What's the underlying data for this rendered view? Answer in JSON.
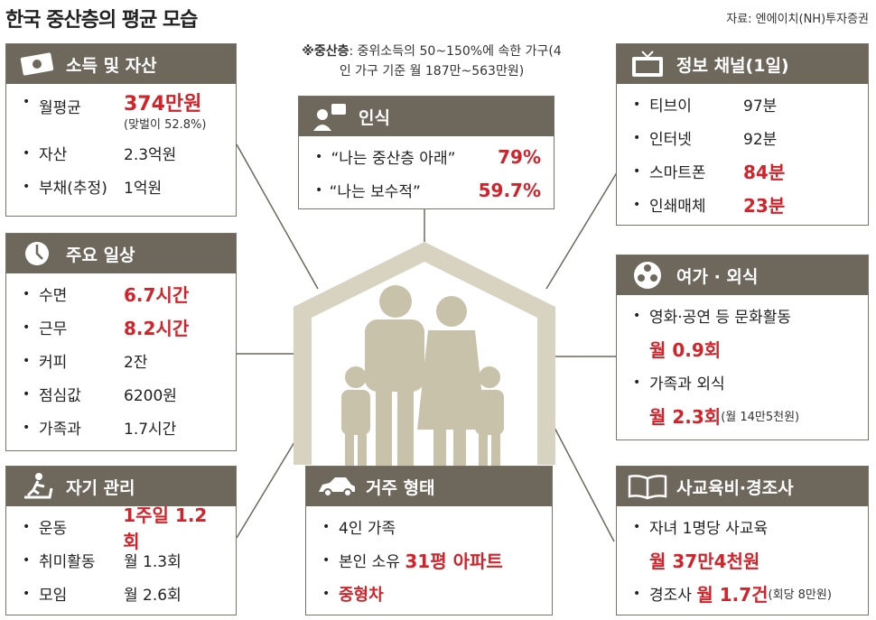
{
  "title": "한국 중산층의 평균 모습",
  "source": "자료: 엔에이치(NH)투자증권",
  "note": {
    "label": "※중산층",
    "text": ": 중위소득의 50~150%에 속한 가구(4인 가구 기준 월 187만~563만원)"
  },
  "income": {
    "header": "소득 및 자산",
    "icon": "money-icon",
    "rows": [
      {
        "k": "월평균",
        "v": "374만원",
        "sub": "(맞벌이 52.8%)"
      },
      {
        "k": "자산",
        "v": "2.3억원"
      },
      {
        "k": "부채(추정)",
        "v": "1억원"
      }
    ]
  },
  "daily": {
    "header": "주요 일상",
    "icon": "clock-icon",
    "rows": [
      {
        "k": "수면",
        "v": "6.7시간"
      },
      {
        "k": "근무",
        "v": "8.2시간"
      },
      {
        "k": "커피",
        "v": "2잔"
      },
      {
        "k": "점심값",
        "v": "6200원"
      },
      {
        "k": "가족과",
        "v": "1.7시간"
      }
    ]
  },
  "self": {
    "header": "자기 관리",
    "icon": "treadmill-icon",
    "rows": [
      {
        "k": "운동",
        "v": "1주일 1.2회"
      },
      {
        "k": "취미활동",
        "v": "월 1.3회"
      },
      {
        "k": "모임",
        "v": "월 2.6회"
      }
    ]
  },
  "perception": {
    "header": "인식",
    "icon": "person-speech-icon",
    "rows": [
      {
        "k": "“나는 중산층 아래”",
        "v": "79%"
      },
      {
        "k": "“나는 보수적”",
        "v": "59.7%"
      }
    ]
  },
  "housing": {
    "header": "거주 형태",
    "icon": "car-icon",
    "rows": [
      {
        "k": "4인 가족"
      },
      {
        "k": "본인 소유",
        "v": "31평 아파트"
      },
      {
        "v": "중형차"
      }
    ]
  },
  "media": {
    "header": "정보 채널(1일)",
    "icon": "tv-icon",
    "rows": [
      {
        "k": "티브이",
        "v": "97분"
      },
      {
        "k": "인터넷",
        "v": "92분"
      },
      {
        "k": "스마트폰",
        "v": "84분"
      },
      {
        "k": "인쇄매체",
        "v": "23분"
      }
    ]
  },
  "leisure": {
    "header": "여가 · 외식",
    "icon": "film-reel-icon",
    "rows": [
      {
        "k": "영화·공연 등 문화활동",
        "v": "월 0.9회"
      },
      {
        "k": "가족과 외식",
        "v": "월 2.3회",
        "sub": "(월 14만5천원)"
      }
    ]
  },
  "edu": {
    "header": "사교육비·경조사",
    "icon": "book-icon",
    "rows": [
      {
        "k": "자녀 1명당 사교육",
        "v": "월 37만4천원"
      },
      {
        "k": "경조사",
        "v": "월 1.7건",
        "sub": "(회당 8만원)"
      }
    ]
  }
}
